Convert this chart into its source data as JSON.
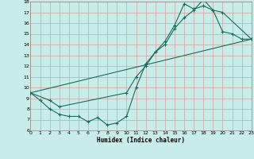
{
  "title": "",
  "xlabel": "Humidex (Indice chaleur)",
  "bg_color": "#c8ece8",
  "grid_color": "#d4a0a0",
  "line_color": "#1a6b5a",
  "xlim": [
    0,
    23
  ],
  "ylim": [
    6,
    18
  ],
  "xticks": [
    0,
    1,
    2,
    3,
    4,
    5,
    6,
    7,
    8,
    9,
    10,
    11,
    12,
    13,
    14,
    15,
    16,
    17,
    18,
    19,
    20,
    21,
    22,
    23
  ],
  "yticks": [
    6,
    7,
    8,
    9,
    10,
    11,
    12,
    13,
    14,
    15,
    16,
    17,
    18
  ],
  "line1_x": [
    0,
    1,
    2,
    3,
    4,
    5,
    6,
    7,
    8,
    9,
    10,
    11,
    12,
    13,
    14,
    15,
    16,
    17,
    18,
    19,
    20,
    21,
    22,
    23
  ],
  "line1_y": [
    9.5,
    8.8,
    8.0,
    7.5,
    7.3,
    7.3,
    6.8,
    7.2,
    6.5,
    6.7,
    7.3,
    10.0,
    12.2,
    13.3,
    14.3,
    15.8,
    17.8,
    17.3,
    17.6,
    17.2,
    15.2,
    15.0,
    14.5,
    14.5
  ],
  "line2_x": [
    0,
    2,
    3,
    10,
    11,
    12,
    13,
    14,
    15,
    16,
    17,
    18,
    19,
    20,
    23
  ],
  "line2_y": [
    9.5,
    8.8,
    8.2,
    9.5,
    11.0,
    12.0,
    13.3,
    14.0,
    15.5,
    16.5,
    17.2,
    18.2,
    17.2,
    17.0,
    14.5
  ],
  "line3_x": [
    0,
    23
  ],
  "line3_y": [
    9.5,
    14.5
  ]
}
